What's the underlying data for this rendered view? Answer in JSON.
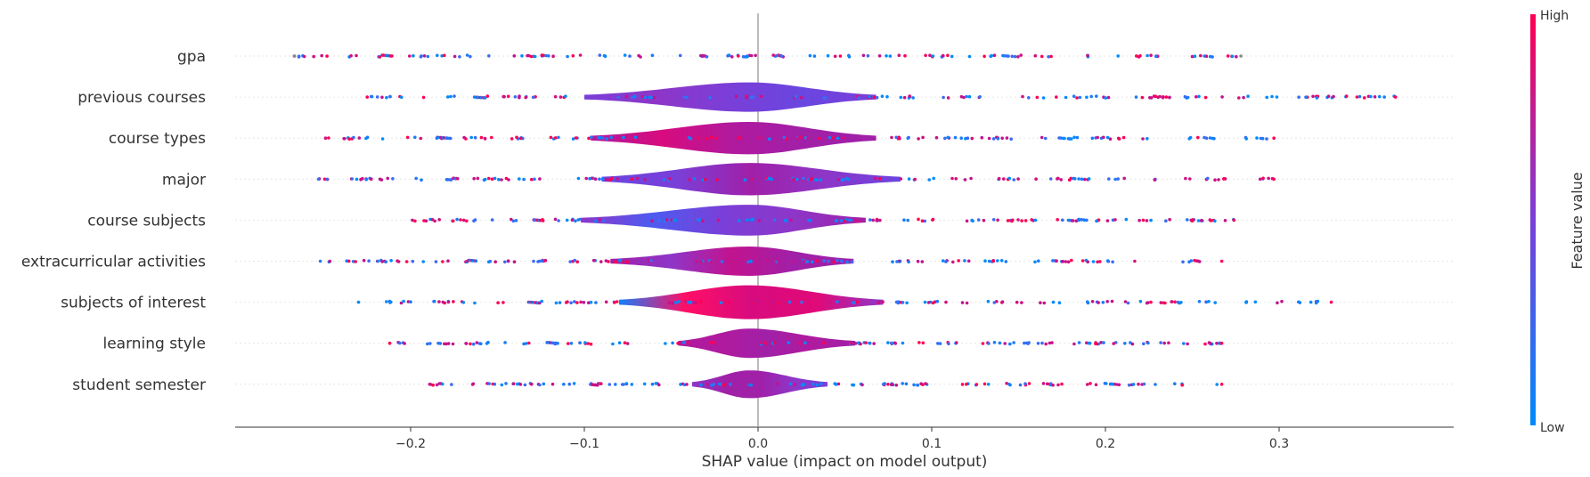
{
  "chart_data": {
    "type": "violin",
    "xlabel": "SHAP value (impact on model output)",
    "xlim": [
      -0.3,
      0.4
    ],
    "xticks": [
      -0.2,
      -0.1,
      0.0,
      0.1,
      0.2,
      0.3
    ],
    "xtick_labels": [
      "−0.2",
      "−0.1",
      "0.0",
      "0.1",
      "0.2",
      "0.3"
    ],
    "zero_line": true,
    "colorbar": {
      "title": "Feature value",
      "high_label": "High",
      "low_label": "Low",
      "low_color": "#008bfb",
      "high_color": "#ff0052"
    },
    "features": [
      {
        "name": "gpa",
        "min": -0.267,
        "max": 0.278,
        "violin_halfwidth": 0.0,
        "violin_range": [
          0,
          0
        ],
        "violin_colors": [
          "#7a3fd8"
        ]
      },
      {
        "name": "previous courses",
        "min": -0.225,
        "max": 0.367,
        "violin_halfwidth": 0.9,
        "violin_range": [
          -0.1,
          0.068
        ],
        "violin_colors": [
          "#7a3fd8",
          "#8e36c8",
          "#7a3fd8",
          "#6a46e0",
          "#7a3fd8"
        ]
      },
      {
        "name": "course types",
        "min": -0.249,
        "max": 0.297,
        "violin_halfwidth": 1.0,
        "violin_range": [
          -0.096,
          0.068
        ],
        "violin_colors": [
          "#b01a9e",
          "#d80b7e",
          "#b01a9e",
          "#a020a8",
          "#a020a8"
        ]
      },
      {
        "name": "major",
        "min": -0.253,
        "max": 0.297,
        "violin_halfwidth": 1.0,
        "violin_range": [
          -0.09,
          0.082
        ],
        "violin_colors": [
          "#6a46e0",
          "#7a3fd8",
          "#a020a8",
          "#8e36c8",
          "#6a46e0"
        ]
      },
      {
        "name": "course subjects",
        "min": -0.199,
        "max": 0.274,
        "violin_halfwidth": 0.95,
        "violin_range": [
          -0.102,
          0.062
        ],
        "violin_colors": [
          "#8e36c8",
          "#4d5bf0",
          "#7a3fd8",
          "#8e36c8",
          "#a020a8"
        ]
      },
      {
        "name": "extracurricular activities",
        "min": -0.252,
        "max": 0.267,
        "violin_halfwidth": 0.9,
        "violin_range": [
          -0.085,
          0.055
        ],
        "violin_colors": [
          "#a020a8",
          "#8e36c8",
          "#c2138e",
          "#a020a8",
          "#a020a8"
        ]
      },
      {
        "name": "subjects of interest",
        "min": -0.23,
        "max": 0.33,
        "violin_halfwidth": 1.05,
        "violin_range": [
          -0.08,
          0.072
        ],
        "violin_colors": [
          "#1a7cf8",
          "#ff0f66",
          "#d80b7e",
          "#e00a78",
          "#8e36c8"
        ]
      },
      {
        "name": "learning style",
        "min": -0.212,
        "max": 0.267,
        "violin_halfwidth": 0.9,
        "violin_range": [
          -0.046,
          0.056
        ],
        "violin_colors": [
          "#b01a9e",
          "#b01a9e",
          "#a020a8",
          "#b01a9e",
          "#a020a8"
        ]
      },
      {
        "name": "student semester",
        "min": -0.189,
        "max": 0.267,
        "violin_halfwidth": 0.85,
        "violin_range": [
          -0.038,
          0.04
        ],
        "violin_colors": [
          "#8e36c8",
          "#a020a8",
          "#a020a8",
          "#8e36c8",
          "#7a3fd8"
        ]
      }
    ]
  }
}
